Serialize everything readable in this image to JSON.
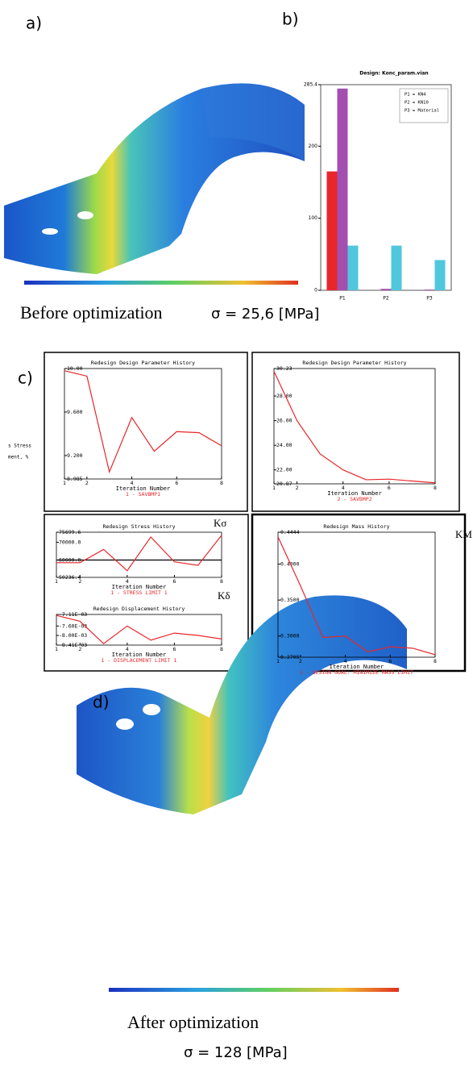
{
  "panel_labels": [
    "a)",
    "b)",
    "c)",
    "d)"
  ],
  "captions": {
    "before": "Before optimization",
    "before_stress": "σ = 25,6 [MPa]",
    "after": "After optimization",
    "after_stress": "σ = 128 [MPa]"
  },
  "side_labels": [
    "s Stress",
    "ment, %"
  ],
  "chart_data": [
    {
      "type": "bar",
      "title": "Design: Konc_param.vian",
      "categories": [
        "P1",
        "P2",
        "P3"
      ],
      "series": [
        {
          "color": "#e8262a",
          "values": [
            165,
            0,
            0
          ]
        },
        {
          "color": "#a34fb0",
          "values": [
            280,
            2,
            1
          ]
        },
        {
          "color": "#4fc7dc",
          "values": [
            62,
            62,
            42
          ]
        }
      ],
      "legend_text": [
        "P1 = KN4",
        "P2 = KN10",
        "P3 = Material"
      ],
      "ylim": [
        0,
        285.4
      ],
      "yticks": [
        0,
        100,
        200,
        285.4
      ]
    },
    {
      "type": "line",
      "title": "Redesign Design Parameter History",
      "x_label": "Iteration Number",
      "x": [
        1,
        2,
        3,
        4,
        5,
        6,
        7,
        8
      ],
      "series": [
        {
          "name": "1 - SAVBMP1",
          "color": "#e8262a",
          "values": [
            9.98,
            9.93,
            9.05,
            9.55,
            9.24,
            9.42,
            9.41,
            9.29
          ]
        }
      ],
      "xlim": [
        1,
        8
      ],
      "xticks": [
        1,
        2,
        4,
        6,
        8
      ],
      "ylim": [
        8.985,
        10
      ],
      "yticks": [
        {
          "value": 8.985,
          "label": "8.985"
        },
        {
          "value": 9.2,
          "label": "9.200"
        },
        {
          "value": 9.6,
          "label": "9.600"
        },
        {
          "value": 10,
          "label": "10.00"
        }
      ]
    },
    {
      "type": "line",
      "title": "Redesign Design Parameter History",
      "x_label": "Iteration Number",
      "x": [
        1,
        2,
        3,
        4,
        5,
        6,
        7,
        8
      ],
      "series": [
        {
          "name": "2 - SAVBMP2",
          "color": "#e8262a",
          "values": [
            30.0,
            26.0,
            23.3,
            22.0,
            21.2,
            21.25,
            21.1,
            20.95
          ]
        }
      ],
      "xlim": [
        1,
        8
      ],
      "xticks": [
        1,
        2,
        4,
        6,
        8
      ],
      "ylim": [
        20.87,
        30.23
      ],
      "yticks": [
        20.87,
        {
          "value": 22,
          "label": "22.00"
        },
        {
          "value": 24,
          "label": "24.00"
        },
        {
          "value": 26,
          "label": "26.00"
        },
        {
          "value": 28,
          "label": "28.00"
        },
        30.23
      ]
    },
    {
      "type": "line",
      "title": "Redesign Stress History",
      "x_label": "Iteration Number",
      "annotation": "Kσ",
      "x": [
        1,
        2,
        3,
        4,
        5,
        6,
        7,
        8
      ],
      "series": [
        {
          "name": "1 - STRESS LIMIT 1",
          "color": "#e8262a",
          "values": [
            58500,
            58500,
            66000,
            54000,
            73000,
            59000,
            57000,
            74000
          ]
        }
      ],
      "reference_line": {
        "value": 60000,
        "color": "#000000"
      },
      "xlim": [
        1,
        8
      ],
      "xticks": [
        1,
        2,
        4,
        6,
        8
      ],
      "ylim": [
        50236.4,
        75699.6
      ],
      "yticks": [
        50236.4,
        {
          "value": 60000,
          "label": "60000.0"
        },
        {
          "value": 70000,
          "label": "70000.0"
        },
        75699.6
      ]
    },
    {
      "type": "line",
      "title": "Redesign Displacement History",
      "x_label": "Iteration Number",
      "annotation": "Kδ",
      "x": [
        1,
        2,
        3,
        4,
        5,
        6,
        7,
        8
      ],
      "series": [
        {
          "name": "1 - DISPLACEMENT LIMIT 1",
          "color": "#e8262a",
          "values": [
            -0.00715,
            -0.0074,
            -0.00835,
            -0.0076,
            -0.0082,
            -0.0079,
            -0.008,
            -0.00815
          ]
        }
      ],
      "xlim": [
        1,
        8
      ],
      "xticks": [
        1,
        2,
        4,
        6,
        8
      ],
      "ylim": [
        -0.00841,
        -0.00711
      ],
      "yticks": [
        {
          "value": -0.00841,
          "label": "-8.41E-03"
        },
        {
          "value": -0.008,
          "label": "-8.00E-03"
        },
        {
          "value": -0.0076,
          "label": "-7.60E-03"
        },
        {
          "value": -0.00711,
          "label": "-7.11E-03"
        }
      ]
    },
    {
      "type": "line",
      "title": "Redesign Mass History",
      "x_label": "Iteration Number",
      "annotation": "KM",
      "x": [
        1,
        2,
        3,
        4,
        5,
        6,
        7,
        8
      ],
      "series": [
        {
          "name": "1 - DESIGN GOAL: MINIMIZE MASS LIMIT",
          "color": "#e8262a",
          "values": [
            0.438,
            0.37,
            0.298,
            0.3,
            0.278,
            0.285,
            0.283,
            0.274
          ]
        }
      ],
      "xlim": [
        1,
        8
      ],
      "xticks": [
        1,
        2,
        4,
        6,
        8
      ],
      "ylim": [
        0.2705,
        0.4444
      ],
      "yticks": [
        {
          "value": 0.2705,
          "label": "0.2705"
        },
        {
          "value": 0.3,
          "label": "0.3000"
        },
        {
          "value": 0.35,
          "label": "0.3500"
        },
        {
          "value": 0.4,
          "label": "0.4000"
        },
        0.4444
      ]
    }
  ]
}
